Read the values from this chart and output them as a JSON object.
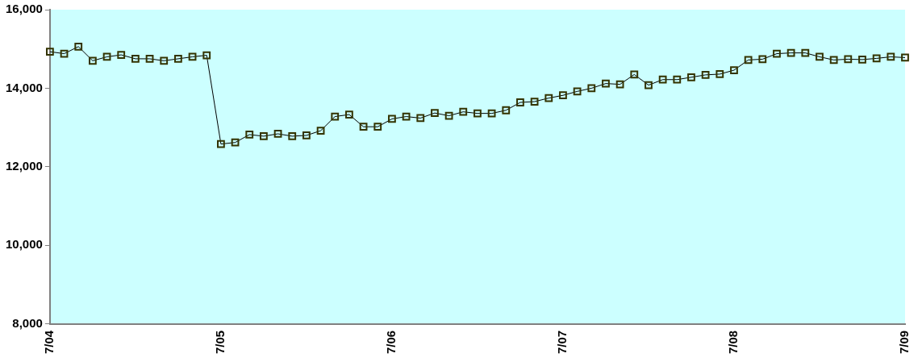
{
  "chart_data": {
    "type": "line",
    "categories": [
      "7/04",
      null,
      null,
      null,
      null,
      null,
      null,
      null,
      null,
      null,
      null,
      null,
      "7/05",
      null,
      null,
      null,
      null,
      null,
      null,
      null,
      null,
      null,
      null,
      null,
      "7/06",
      null,
      null,
      null,
      null,
      null,
      null,
      null,
      null,
      null,
      null,
      null,
      "7/07",
      null,
      null,
      null,
      null,
      null,
      null,
      null,
      null,
      null,
      null,
      null,
      "7/08",
      null,
      null,
      null,
      null,
      null,
      null,
      null,
      null,
      null,
      null,
      null,
      "7/09"
    ],
    "series": [
      {
        "color": "#333300",
        "values": [
          14930,
          14880,
          15060,
          14700,
          14800,
          14850,
          14750,
          14750,
          14700,
          14750,
          14800,
          14840,
          12580,
          12620,
          12820,
          12780,
          12840,
          12780,
          12800,
          12920,
          13280,
          13330,
          13020,
          13020,
          13220,
          13280,
          13240,
          13370,
          13300,
          13400,
          13360,
          13360,
          13440,
          13640,
          13660,
          13750,
          13820,
          13920,
          14000,
          14120,
          14100,
          14350,
          14080,
          14220,
          14220,
          14280,
          14340,
          14360,
          14460,
          14720,
          14740,
          14880,
          14900,
          14900,
          14800,
          14720,
          14740,
          14730,
          14760,
          14800,
          14780
        ]
      }
    ],
    "ylim": [
      8000,
      16000
    ],
    "yticks": [
      {
        "value": 8000,
        "label": "8,000"
      },
      {
        "value": 10000,
        "label": "10,000"
      },
      {
        "value": 12000,
        "label": "12,000"
      },
      {
        "value": 14000,
        "label": "14,000"
      },
      {
        "value": 16000,
        "label": "16,000"
      }
    ],
    "grid": false,
    "legend": false,
    "marker": "square",
    "line_style": "solid"
  }
}
